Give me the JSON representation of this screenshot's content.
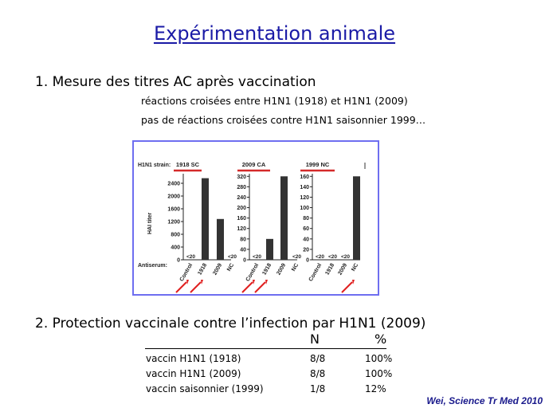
{
  "title": "Expérimentation animale",
  "section1": {
    "heading": "1. Mesure des titres AC après vaccination",
    "lines": [
      "réactions croisées entre H1N1 (1918) et H1N1 (2009)",
      "pas de réactions croisées contre H1N1 saisonnier 1999…"
    ]
  },
  "figure": {
    "strain_label": "H1N1 strain:",
    "antiserum_label": "Antiserum:",
    "ylabel": "HAI titer",
    "colors": {
      "bar": "#333333",
      "strain_line": "#d42a2a",
      "arrow": "#e02020",
      "frame": "#6e6ef0"
    }
  },
  "chart_data": [
    {
      "type": "bar",
      "title": "1918 SC",
      "categories": [
        "Control",
        "1918",
        "2009",
        "NC"
      ],
      "values": [
        0,
        2560,
        1280,
        0
      ],
      "value_labels": [
        "<20",
        "",
        "",
        "<20"
      ],
      "yticks": [
        "0",
        "400",
        "800",
        "1200",
        "1600",
        "2000",
        "2400"
      ],
      "ylabel": "HAI titer",
      "ylim": [
        0,
        2700
      ],
      "arrows": [
        "Control",
        "1918"
      ]
    },
    {
      "type": "bar",
      "title": "2009 CA",
      "categories": [
        "Control",
        "1918",
        "2009",
        "NC"
      ],
      "values": [
        0,
        80,
        320,
        0
      ],
      "value_labels": [
        "<20",
        "",
        "",
        "<20"
      ],
      "yticks": [
        "0",
        "40",
        "80",
        "120",
        "160",
        "200",
        "240",
        "280",
        "320"
      ],
      "ylim": [
        0,
        330
      ],
      "arrows": [
        "Control",
        "1918"
      ]
    },
    {
      "type": "bar",
      "title": "1999 NC",
      "categories": [
        "Control",
        "1918",
        "2009",
        "NC"
      ],
      "values": [
        0,
        0,
        0,
        160
      ],
      "value_labels": [
        "<20",
        "<20",
        "<20",
        ""
      ],
      "yticks": [
        "0",
        "20",
        "40",
        "60",
        "80",
        "100",
        "120",
        "140",
        "160"
      ],
      "ylim": [
        0,
        165
      ],
      "arrows": [
        "NC"
      ]
    }
  ],
  "section2": {
    "heading": "2. Protection vaccinale contre l’infection par H1N1 (2009)",
    "col_n": "N",
    "col_pct": "%",
    "rows": [
      {
        "label": "vaccin H1N1 (1918)",
        "n": "8/8",
        "pct": "100%"
      },
      {
        "label": "vaccin H1N1 (2009)",
        "n": "8/8",
        "pct": "100%"
      },
      {
        "label": "vaccin saisonnier (1999)",
        "n": "1/8",
        "pct": "12%"
      }
    ]
  },
  "credit": "Wei, Science Tr Med 2010"
}
